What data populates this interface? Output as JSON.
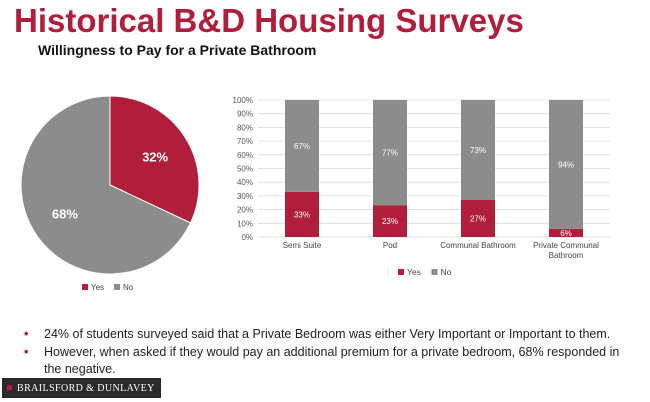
{
  "slide": {
    "title": "Historical B&D Housing Surveys",
    "subtitle": "Willingness to Pay for a Private Bathroom",
    "bullets": [
      "24% of students surveyed said that a Private Bedroom was either Very Important or Important to them.",
      "However, when asked if they would pay an additional premium for a private bedroom, 68% responded in the negative."
    ],
    "logo_text": "BRAILSFORD & DUNLAVEY"
  },
  "colors": {
    "yes": "#b01e3c",
    "no": "#8c8c8c",
    "accent": "#b01e3c"
  },
  "chart_data": [
    {
      "type": "pie",
      "labels": [
        "Yes",
        "No"
      ],
      "values": [
        32,
        68
      ],
      "data_labels": [
        "32%",
        "68%"
      ],
      "legend": "bottom"
    },
    {
      "type": "bar",
      "stacked": true,
      "categories": [
        "Semi Suite",
        "Pod",
        "Communal Bathroom",
        "Private Communal Bathroom"
      ],
      "series": [
        {
          "name": "Yes",
          "values": [
            33,
            23,
            27,
            6
          ],
          "labels": [
            "33%",
            "23%",
            "27%",
            "6%"
          ]
        },
        {
          "name": "No",
          "values": [
            67,
            77,
            73,
            94
          ],
          "labels": [
            "67%",
            "77%",
            "73%",
            "94%"
          ]
        }
      ],
      "ylim": [
        0,
        100
      ],
      "yticks": [
        "0%",
        "10%",
        "20%",
        "30%",
        "40%",
        "50%",
        "60%",
        "70%",
        "80%",
        "90%",
        "100%"
      ],
      "grid": true,
      "legend": "bottom"
    }
  ]
}
